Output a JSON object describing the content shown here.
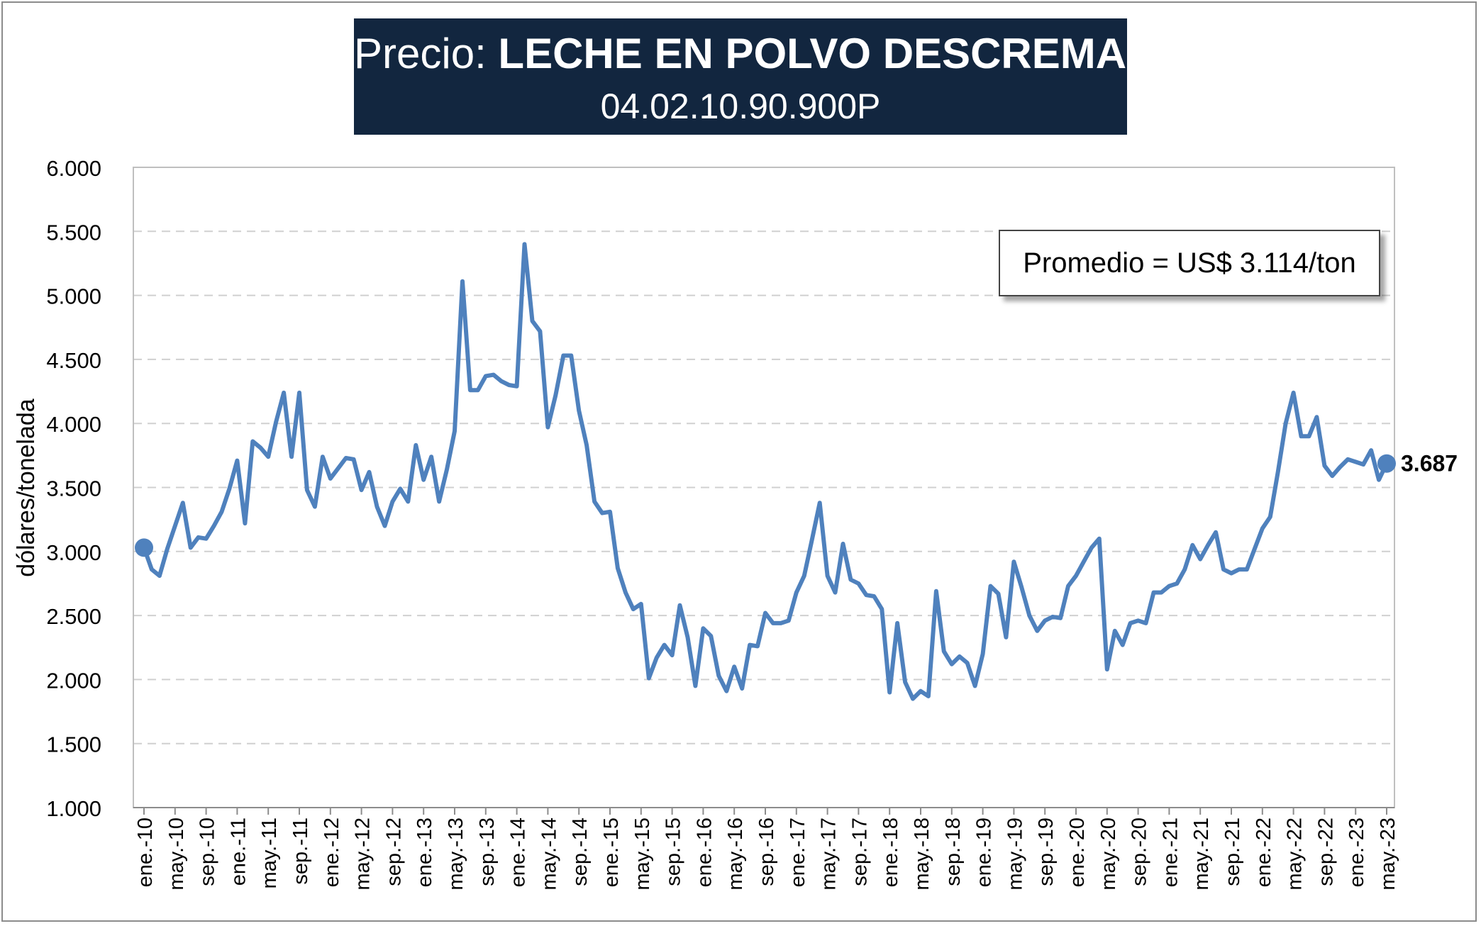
{
  "title": {
    "prefix": "Precio: ",
    "main": "LECHE EN POLVO DESCREMADA",
    "subtitle": "04.02.10.90.900P"
  },
  "average_label": "Promedio = US$ 3.114/ton",
  "colors": {
    "line": "#4f81bd",
    "title_bg": "#12263f",
    "grid": "#d0d0d0"
  },
  "chart_data": {
    "type": "line",
    "title": "Precio: LECHE EN POLVO DESCREMADA",
    "subtitle": "04.02.10.90.900P",
    "xlabel": "",
    "ylabel": "dólares/tonelada",
    "ylim": [
      1000,
      6000
    ],
    "yticks": [
      1000,
      1500,
      2000,
      2500,
      3000,
      3500,
      4000,
      4500,
      5000,
      5500,
      6000
    ],
    "ytick_labels": [
      "1.000",
      "1.500",
      "2.000",
      "2.500",
      "3.000",
      "3.500",
      "4.000",
      "4.500",
      "5.000",
      "5.500",
      "6.000"
    ],
    "x_tick_labels": [
      "ene.-10",
      "may.-10",
      "sep.-10",
      "ene.-11",
      "may.-11",
      "sep.-11",
      "ene.-12",
      "may.-12",
      "sep.-12",
      "ene.-13",
      "may.-13",
      "sep.-13",
      "ene.-14",
      "may.-14",
      "sep.-14",
      "ene.-15",
      "may.-15",
      "sep.-15",
      "ene.-16",
      "may.-16",
      "sep.-16",
      "ene.-17",
      "may.-17",
      "sep.-17",
      "ene.-18",
      "may.-18",
      "sep.-18",
      "ene.-19",
      "may.-19",
      "sep.-19",
      "ene.-20",
      "may.-20",
      "sep.-20",
      "ene.-21",
      "may.-21",
      "sep.-21",
      "ene.-22",
      "may.-22",
      "sep.-22",
      "ene.-23",
      "may.-23"
    ],
    "start_label": "ene.-10",
    "last_value_label": "3.687",
    "grid": "horizontal dashed",
    "legend": "none",
    "series": [
      {
        "values": [
          3030,
          2860,
          2810,
          3020,
          3200,
          3380,
          3030,
          3110,
          3100,
          3200,
          3310,
          3490,
          3710,
          3220,
          3860,
          3810,
          3740,
          4010,
          4240,
          3740,
          4240,
          3480,
          3350,
          3740,
          3570,
          3650,
          3730,
          3720,
          3480,
          3620,
          3350,
          3200,
          3390,
          3490,
          3390,
          3830,
          3560,
          3740,
          3390,
          3640,
          3940,
          5110,
          4260,
          4260,
          4370,
          4380,
          4330,
          4300,
          4290,
          5400,
          4800,
          4720,
          3970,
          4220,
          4530,
          4530,
          4100,
          3830,
          3390,
          3300,
          3310,
          2870,
          2680,
          2550,
          2590,
          2010,
          2170,
          2270,
          2190,
          2580,
          2330,
          1950,
          2400,
          2340,
          2030,
          1910,
          2100,
          1930,
          2270,
          2260,
          2520,
          2440,
          2440,
          2460,
          2680,
          2810,
          3090,
          3380,
          2810,
          2680,
          3060,
          2780,
          2750,
          2660,
          2650,
          2550,
          1900,
          2440,
          1980,
          1850,
          1910,
          1870,
          2690,
          2220,
          2120,
          2180,
          2130,
          1950,
          2200,
          2730,
          2670,
          2330,
          2920,
          2720,
          2500,
          2380,
          2460,
          2490,
          2480,
          2730,
          2810,
          2920,
          3030,
          3100,
          2080,
          2380,
          2270,
          2440,
          2460,
          2440,
          2680,
          2680,
          2730,
          2750,
          2860,
          3050,
          2940,
          3050,
          3150,
          2860,
          2830,
          2860,
          2860,
          3020,
          3180,
          3270,
          3620,
          4000,
          4240,
          3900,
          3900,
          4050,
          3670,
          3590,
          3660,
          3720,
          3700,
          3680,
          3790,
          3560,
          3687
        ]
      }
    ]
  }
}
